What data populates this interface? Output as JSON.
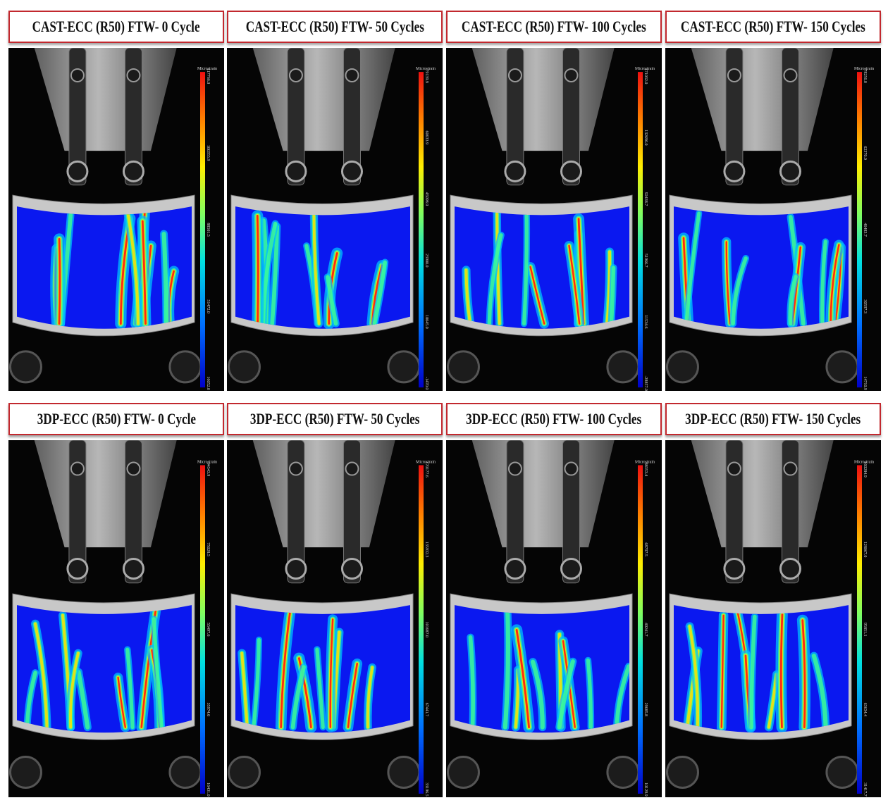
{
  "colors": {
    "title_border": "#c2282e",
    "map_low": "#0a18f0",
    "map_high": "#ff1a10",
    "machine_metal": "#bfbfbf",
    "specimen": "#c9c9c9"
  },
  "rows": [
    {
      "id": "cast",
      "panels": [
        {
          "title": "CAST-ECC (R50) FTW- 0 Cycle",
          "unit": "Microstrain",
          "ticks": [
            "117766.0",
            "100355.9",
            "88501.5",
            "51472.0",
            "16052.0"
          ]
        },
        {
          "title": "CAST-ECC (R50) FTW- 50 Cycles",
          "unit": "Microstrain",
          "ticks": [
            "79139.9",
            "60633.9",
            "45098.9",
            "23900.0",
            "10045.0",
            "-1470.0"
          ]
        },
        {
          "title": "CAST-ECC (R50) FTW- 100 Cycles",
          "unit": "Microstrain",
          "ticks": [
            "171032.0",
            "132696.0",
            "92438.7",
            "51966.7",
            "11534.6",
            "-28857.0"
          ]
        },
        {
          "title": "CAST-ECC (R50) FTW- 150 Cycles",
          "unit": "Microstrain",
          "ticks": [
            "78256.0",
            "62370.0",
            "46483.7",
            "30597.3",
            "14710.9"
          ]
        }
      ]
    },
    {
      "id": "3dp",
      "panels": [
        {
          "title": "3DP-ECC (R50) FTW- 0 Cycle",
          "unit": "Microstrain",
          "ticks": [
            "94543.9",
            "75028.5",
            "55497.6",
            "35974.0",
            "16431.0"
          ]
        },
        {
          "title": "3DP-ECC (R50) FTW- 50 Cycles",
          "unit": "Microstrain",
          "ticks": [
            "170177.6",
            "135932.3",
            "101687.0",
            "67441.7",
            "33196.5"
          ]
        },
        {
          "title": "3DP-ECC (R50) FTW- 100 Cycles",
          "unit": "Microstrain",
          "ticks": [
            "88353.4",
            "68797.5",
            "49241.7",
            "29685.8",
            "10129.9"
          ]
        },
        {
          "title": "3DP-ECC (R50) FTW- 150 Cycles",
          "unit": "Microstrain",
          "ticks": [
            "160284.9",
            "128067.0",
            "95851.1",
            "63634.4",
            "31417.7"
          ]
        }
      ]
    }
  ]
}
